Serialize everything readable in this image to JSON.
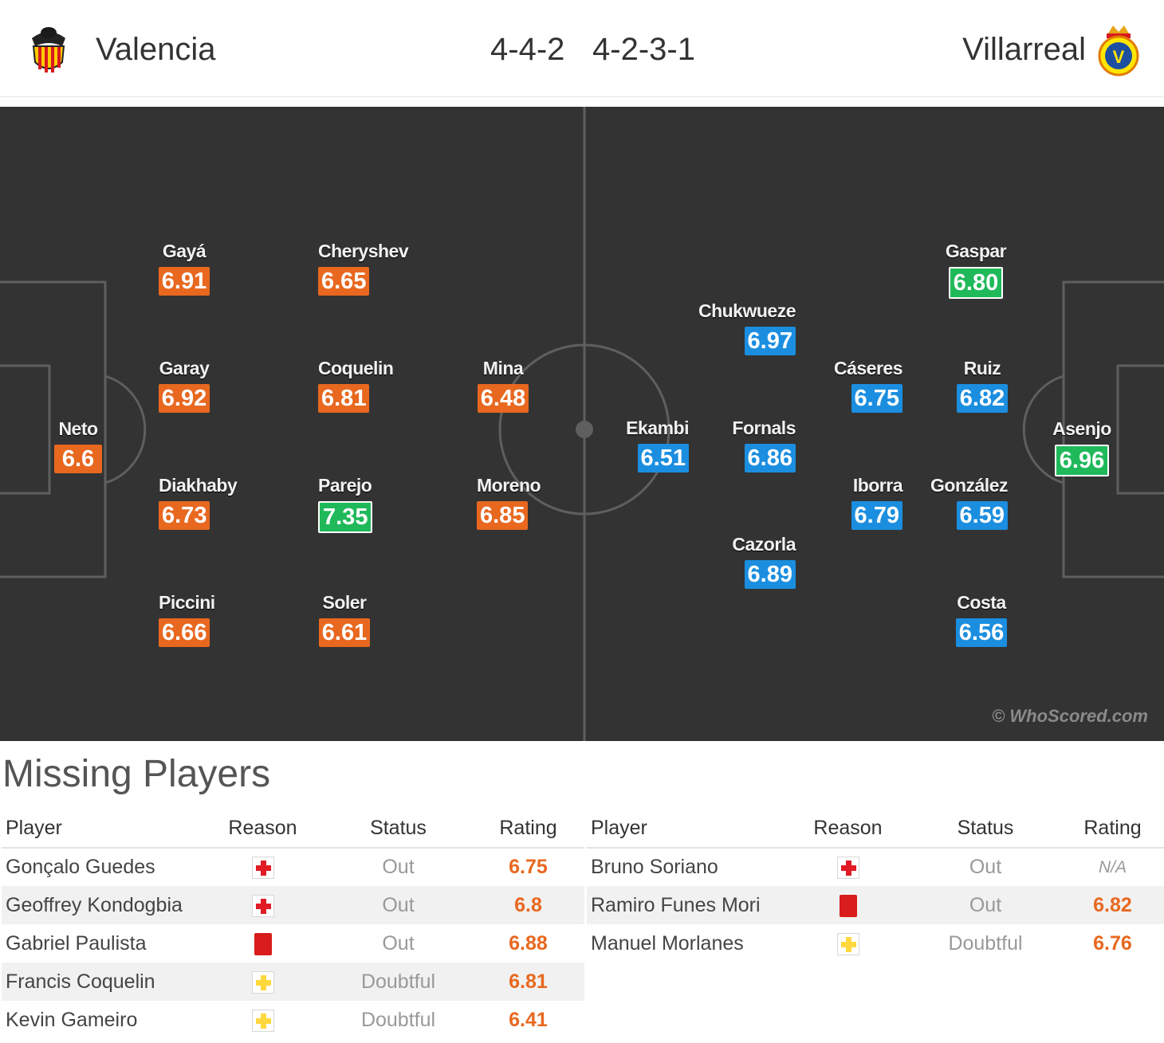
{
  "header": {
    "home_team": "Valencia",
    "away_team": "Villarreal",
    "home_formation": "4-4-2",
    "away_formation": "4-2-3-1"
  },
  "colors": {
    "pitch": "#333333",
    "home_rating": "#e8681f",
    "away_rating": "#1b8ee0",
    "best_rating": "#1fb95a"
  },
  "pitch": {
    "watermark": "© WhoScored.com",
    "home_players": [
      {
        "name": "Neto",
        "rating": "6.6"
      },
      {
        "name": "Gayá",
        "rating": "6.91"
      },
      {
        "name": "Garay",
        "rating": "6.92"
      },
      {
        "name": "Diakhaby",
        "rating": "6.73"
      },
      {
        "name": "Piccini",
        "rating": "6.66"
      },
      {
        "name": "Cheryshev",
        "rating": "6.65"
      },
      {
        "name": "Coquelin",
        "rating": "6.81"
      },
      {
        "name": "Parejo",
        "rating": "7.35"
      },
      {
        "name": "Soler",
        "rating": "6.61"
      },
      {
        "name": "Mina",
        "rating": "6.48"
      },
      {
        "name": "Moreno",
        "rating": "6.85"
      }
    ],
    "away_players": [
      {
        "name": "Asenjo",
        "rating": "6.96"
      },
      {
        "name": "Gaspar",
        "rating": "6.80"
      },
      {
        "name": "Ruiz",
        "rating": "6.82"
      },
      {
        "name": "González",
        "rating": "6.59"
      },
      {
        "name": "Costa",
        "rating": "6.56"
      },
      {
        "name": "Cáseres",
        "rating": "6.75"
      },
      {
        "name": "Iborra",
        "rating": "6.79"
      },
      {
        "name": "Chukwueze",
        "rating": "6.97"
      },
      {
        "name": "Fornals",
        "rating": "6.86"
      },
      {
        "name": "Cazorla",
        "rating": "6.89"
      },
      {
        "name": "Ekambi",
        "rating": "6.51"
      }
    ]
  },
  "missing": {
    "title": "Missing Players",
    "headers": {
      "player": "Player",
      "reason": "Reason",
      "status": "Status",
      "rating": "Rating"
    },
    "home": [
      {
        "player": "Gonçalo Guedes",
        "reason": "injury",
        "status": "Out",
        "rating": "6.75"
      },
      {
        "player": "Geoffrey Kondogbia",
        "reason": "injury",
        "status": "Out",
        "rating": "6.8"
      },
      {
        "player": "Gabriel Paulista",
        "reason": "red-card",
        "status": "Out",
        "rating": "6.88"
      },
      {
        "player": "Francis Coquelin",
        "reason": "doubtful",
        "status": "Doubtful",
        "rating": "6.81"
      },
      {
        "player": "Kevin Gameiro",
        "reason": "doubtful",
        "status": "Doubtful",
        "rating": "6.41"
      }
    ],
    "away": [
      {
        "player": "Bruno Soriano",
        "reason": "injury",
        "status": "Out",
        "rating": "N/A"
      },
      {
        "player": "Ramiro Funes Mori",
        "reason": "red-card",
        "status": "Out",
        "rating": "6.82"
      },
      {
        "player": "Manuel Morlanes",
        "reason": "doubtful",
        "status": "Doubtful",
        "rating": "6.76"
      }
    ]
  }
}
